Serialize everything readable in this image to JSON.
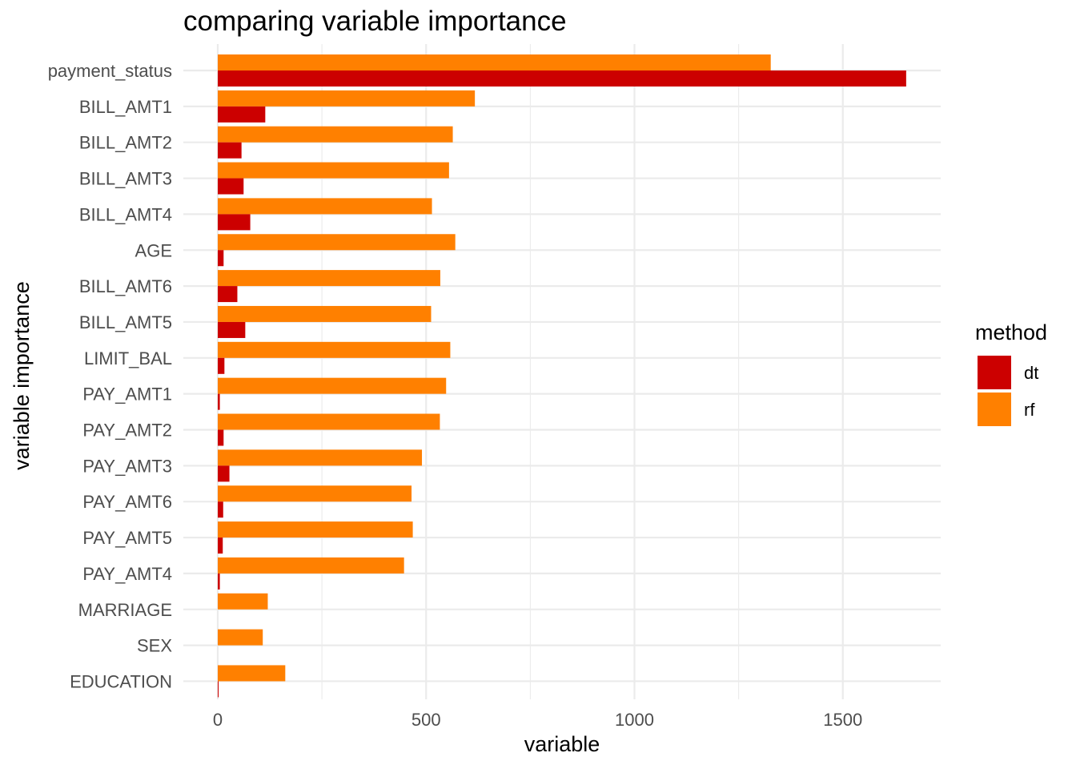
{
  "chart_data": {
    "type": "bar",
    "orientation": "horizontal",
    "title": "comparing variable importance",
    "xlabel": "variable",
    "ylabel": "variable importance",
    "xlim": [
      -170,
      1740
    ],
    "xticks": [
      0,
      500,
      1000,
      1500
    ],
    "grid": true,
    "legend": {
      "title": "method",
      "position": "right",
      "entries": [
        {
          "label": "dt",
          "color": "#CC0000"
        },
        {
          "label": "rf",
          "color": "#FF8000"
        }
      ]
    },
    "categories": [
      "payment_status",
      "BILL_AMT1",
      "BILL_AMT2",
      "BILL_AMT3",
      "BILL_AMT4",
      "AGE",
      "BILL_AMT6",
      "BILL_AMT5",
      "LIMIT_BAL",
      "PAY_AMT1",
      "PAY_AMT2",
      "PAY_AMT3",
      "PAY_AMT6",
      "PAY_AMT5",
      "PAY_AMT4",
      "MARRIAGE",
      "SEX",
      "EDUCATION"
    ],
    "series": [
      {
        "name": "rf",
        "color": "#FF8000",
        "values": [
          1327,
          617,
          564,
          555,
          514,
          570,
          534,
          512,
          558,
          548,
          533,
          490,
          465,
          468,
          447,
          120,
          108,
          162
        ]
      },
      {
        "name": "dt",
        "color": "#CC0000",
        "values": [
          1652,
          114,
          57,
          62,
          78,
          14,
          47,
          66,
          16,
          5,
          14,
          28,
          13,
          12,
          5,
          0,
          0,
          2
        ]
      }
    ]
  }
}
